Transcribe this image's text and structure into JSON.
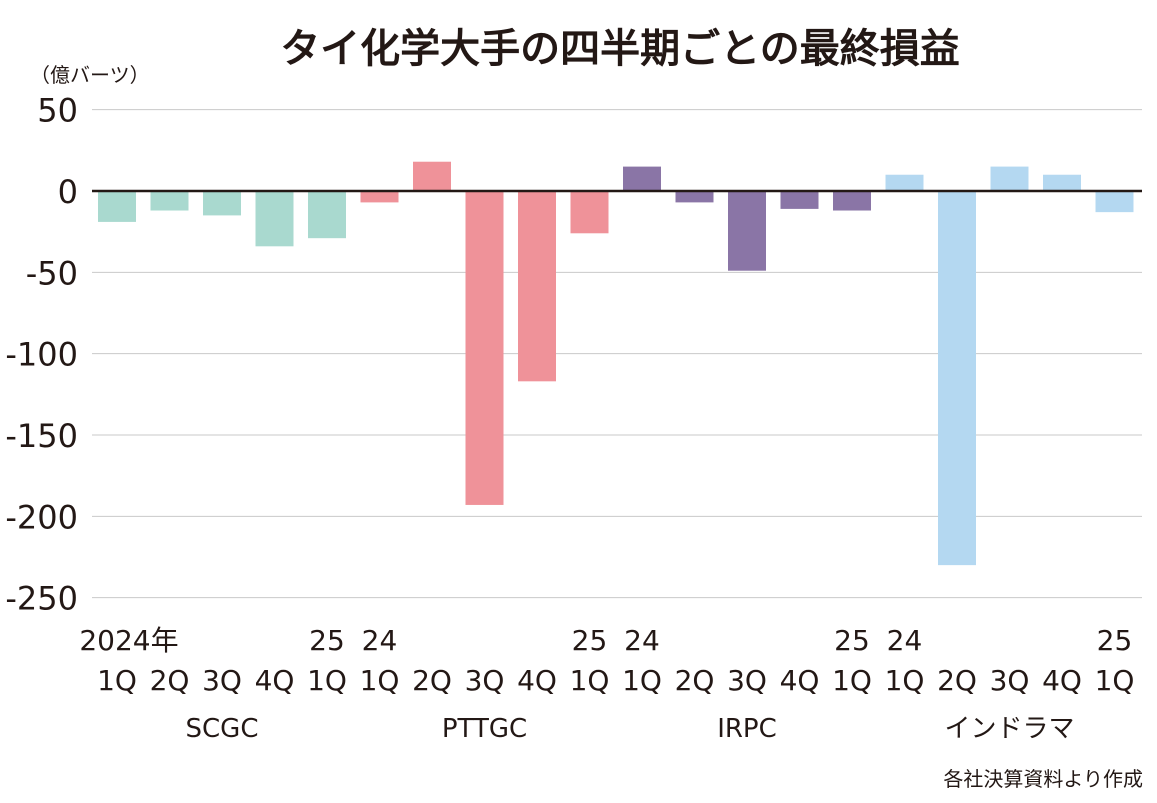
{
  "chart_data": {
    "type": "bar",
    "title": "タイ化学大手の四半期ごとの最終損益",
    "ylabel": "（億バーツ）",
    "ylim": [
      -250,
      50
    ],
    "yticks": [
      "50",
      "0",
      "-50",
      "-100",
      "-150",
      "-200",
      "-250"
    ],
    "ytick_values": [
      50,
      0,
      -50,
      -100,
      -150,
      -200,
      -250
    ],
    "grid": true,
    "source": "各社決算資料より作成",
    "groups": [
      {
        "name": "SCGC",
        "color": "#a9d9cf",
        "year_labels": [
          "2024年",
          "",
          "",
          "",
          "25"
        ],
        "quarters": [
          "1Q",
          "2Q",
          "3Q",
          "4Q",
          "1Q"
        ],
        "values": [
          -19,
          -12,
          -15,
          -34,
          -29
        ]
      },
      {
        "name": "PTTGC",
        "color": "#ef9299",
        "year_labels": [
          "24",
          "",
          "",
          "",
          "25"
        ],
        "quarters": [
          "1Q",
          "2Q",
          "3Q",
          "4Q",
          "1Q"
        ],
        "values": [
          -7,
          18,
          -193,
          -117,
          -26
        ]
      },
      {
        "name": "IRPC",
        "color": "#8a75a6",
        "year_labels": [
          "24",
          "",
          "",
          "",
          "25"
        ],
        "quarters": [
          "1Q",
          "2Q",
          "3Q",
          "4Q",
          "1Q"
        ],
        "values": [
          15,
          -7,
          -49,
          -11,
          -12
        ]
      },
      {
        "name": "インドラマ",
        "color": "#b4d8f1",
        "year_labels": [
          "24",
          "",
          "",
          "",
          "25"
        ],
        "quarters": [
          "1Q",
          "2Q",
          "3Q",
          "4Q",
          "1Q"
        ],
        "values": [
          10,
          -230,
          15,
          10,
          -13
        ]
      }
    ]
  }
}
